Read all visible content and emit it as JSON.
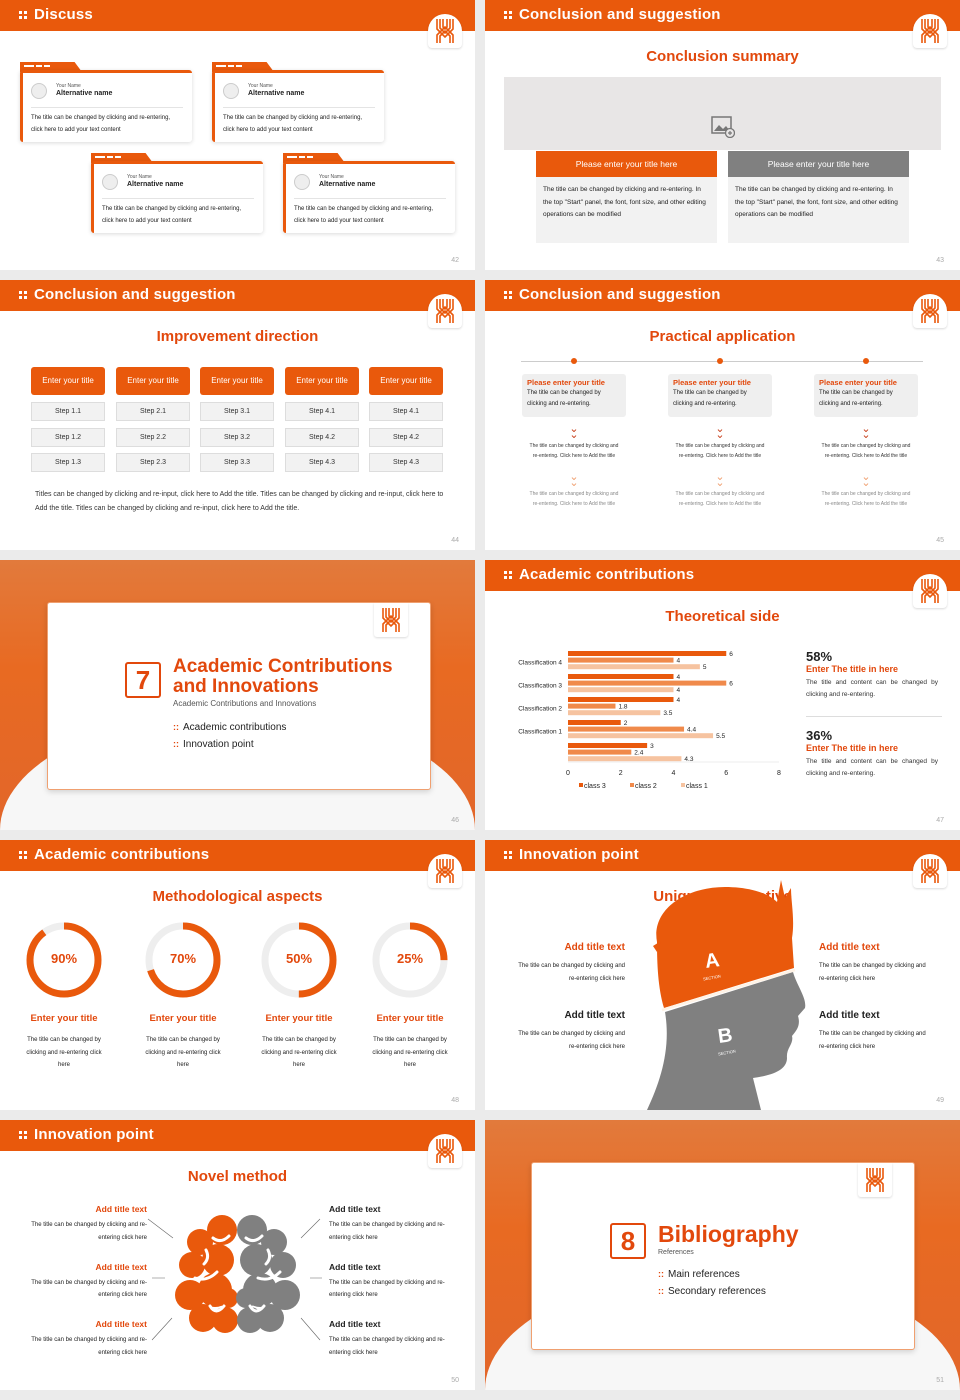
{
  "colors": {
    "accent": "#e9590c",
    "title": "#e2480c",
    "gray": "#808080",
    "light": "#f2f2f2"
  },
  "slides": {
    "s42": {
      "header": "Discuss",
      "page": "42",
      "cards": [
        {
          "name_label": "Your Name",
          "name": "Alternative name",
          "text": "The title can be changed by clicking and re-entering, click here to add your text content"
        },
        {
          "name_label": "Your Name",
          "name": "Alternative name",
          "text": "The title can be changed by clicking and re-entering, click here to add your text content"
        },
        {
          "name_label": "Your Name",
          "name": "Alternative name",
          "text": "The title can be changed by clicking and re-entering, click here to add your text content"
        },
        {
          "name_label": "Your Name",
          "name": "Alternative name",
          "text": "The title can be changed by clicking and re-entering, click here to add your text content"
        }
      ]
    },
    "s43": {
      "header": "Conclusion and suggestion",
      "title": "Conclusion summary",
      "page": "43",
      "image_icon": "image-placeholder-icon",
      "boxes": [
        {
          "title": "Please enter your title here",
          "text": "The title can be changed by clicking and re-entering. In the top \"Start\" panel, the font, font size, and other editing operations can be modified"
        },
        {
          "title": "Please enter your title here",
          "text": "The title can be changed by clicking and re-entering. In the top \"Start\" panel, the font, font size, and other editing operations can be modified"
        }
      ]
    },
    "s44": {
      "header": "Conclusion and suggestion",
      "title": "Improvement direction",
      "page": "44",
      "columns": [
        {
          "title": "Enter your title",
          "steps": [
            "Step 1.1",
            "Step 1.2",
            "Step 1.3"
          ]
        },
        {
          "title": "Enter your title",
          "steps": [
            "Step 2.1",
            "Step 2.2",
            "Step 2.3"
          ]
        },
        {
          "title": "Enter your title",
          "steps": [
            "Step 3.1",
            "Step 3.2",
            "Step 3.3"
          ]
        },
        {
          "title": "Enter your title",
          "steps": [
            "Step 4.1",
            "Step 4.2",
            "Step 4.3"
          ]
        },
        {
          "title": "Enter your title",
          "steps": [
            "Step 4.1",
            "Step 4.2",
            "Step 4.3"
          ]
        }
      ],
      "paragraph": "Titles can be changed by clicking and re-input, click here to Add the title. Titles can be changed by clicking and re-input, click here to Add the title. Titles can be changed by clicking and re-input, click here to Add the title."
    },
    "s45": {
      "header": "Conclusion and suggestion",
      "title": "Practical application",
      "page": "45",
      "items": [
        {
          "title": "Please enter your title",
          "text": "The title can be changed by clicking and re-entering.",
          "step1": "The title can be changed by clicking and re-entering. Click here to Add the title",
          "step2": "The title can be changed by clicking and re-entering. Click here to Add the title"
        },
        {
          "title": "Please enter your title",
          "text": "The title can be changed by clicking and re-entering.",
          "step1": "The title can be changed by clicking and re-entering. Click here to Add the title",
          "step2": "The title can be changed by clicking and re-entering. Click here to Add the title"
        },
        {
          "title": "Please enter your title",
          "text": "The title can be changed by clicking and re-entering.",
          "step1": "The title can be changed by clicking and re-entering. Click here to Add the title",
          "step2": "The title can be changed by clicking and re-entering. Click here to Add the title"
        }
      ]
    },
    "s46": {
      "number": "7",
      "title": "Academic Contributions and Innovations",
      "subtitle": "Academic Contributions and Innovations",
      "bullets": [
        "Academic contributions",
        "Innovation point"
      ],
      "page": "46"
    },
    "s47": {
      "header": "Academic contributions",
      "title": "Theoretical side",
      "page": "47",
      "stats": [
        {
          "value": "58%",
          "title": "Enter The title in here",
          "text": "The title and content can be changed by clicking and re-entering."
        },
        {
          "value": "36%",
          "title": "Enter The title in here",
          "text": "The title and content can be changed by clicking and re-entering."
        }
      ]
    },
    "s48": {
      "header": "Academic contributions",
      "title": "Methodological aspects",
      "page": "48",
      "items": [
        {
          "percent": 90,
          "label": "90%",
          "title": "Enter your title",
          "text": "The title can be changed by clicking and re-entering click here"
        },
        {
          "percent": 70,
          "label": "70%",
          "title": "Enter your title",
          "text": "The title can be changed by clicking and re-entering click here"
        },
        {
          "percent": 50,
          "label": "50%",
          "title": "Enter your title",
          "text": "The title can be changed by clicking and re-entering click here"
        },
        {
          "percent": 25,
          "label": "25%",
          "title": "Enter your title",
          "text": "The title can be changed by clicking and re-entering click here"
        }
      ]
    },
    "s49": {
      "header": "Innovation point",
      "title": "Unique perspective",
      "page": "49",
      "section_a": "A",
      "section_b": "B",
      "section_label": "SECTION",
      "items": [
        {
          "title": "Add title text",
          "text": "The title can be changed by clicking and re-entering click here"
        },
        {
          "title": "Add title text",
          "text": "The title can be changed by clicking and re-entering click here"
        },
        {
          "title": "Add title text",
          "text": "The title can be changed by clicking and re-entering click here"
        },
        {
          "title": "Add title text",
          "text": "The title can be changed by clicking and re-entering click here"
        }
      ]
    },
    "s50": {
      "header": "Innovation point",
      "title": "Novel method",
      "page": "50",
      "left": [
        {
          "title": "Add title text",
          "text": "The title can be changed by clicking and re-entering click here"
        },
        {
          "title": "Add title text",
          "text": "The title can be changed by clicking and re-entering click here"
        },
        {
          "title": "Add title text",
          "text": "The title can be changed by clicking and re-entering click here"
        }
      ],
      "right": [
        {
          "title": "Add title text",
          "text": "The title can be changed by clicking and re-entering click here"
        },
        {
          "title": "Add title text",
          "text": "The title can be changed by clicking and re-entering click here"
        },
        {
          "title": "Add title text",
          "text": "The title can be changed by clicking and re-entering click here"
        }
      ]
    },
    "s51": {
      "number": "8",
      "title": "Bibliography",
      "subtitle": "References",
      "bullets": [
        "Main references",
        "Secondary references"
      ],
      "page": "51"
    }
  },
  "chart_data": {
    "type": "bar",
    "orientation": "horizontal",
    "categories": [
      "Classification 4",
      "Classification 3",
      "Classification 2",
      "Classification 1",
      ""
    ],
    "series": [
      {
        "name": "class 3",
        "color": "#e9590c",
        "values": [
          6,
          4,
          4,
          2,
          3
        ]
      },
      {
        "name": "class 2",
        "color": "#f08a4b",
        "values": [
          4,
          6,
          1.8,
          4.4,
          2.4
        ]
      },
      {
        "name": "class 1",
        "color": "#f6c3a0",
        "values": [
          5,
          4,
          3.5,
          5.5,
          4.3
        ]
      }
    ],
    "xlim": [
      0,
      8
    ],
    "xticks": [
      "0",
      "2",
      "4",
      "6",
      "8"
    ],
    "grid": false,
    "legend": "bottom",
    "data_labels": true
  }
}
